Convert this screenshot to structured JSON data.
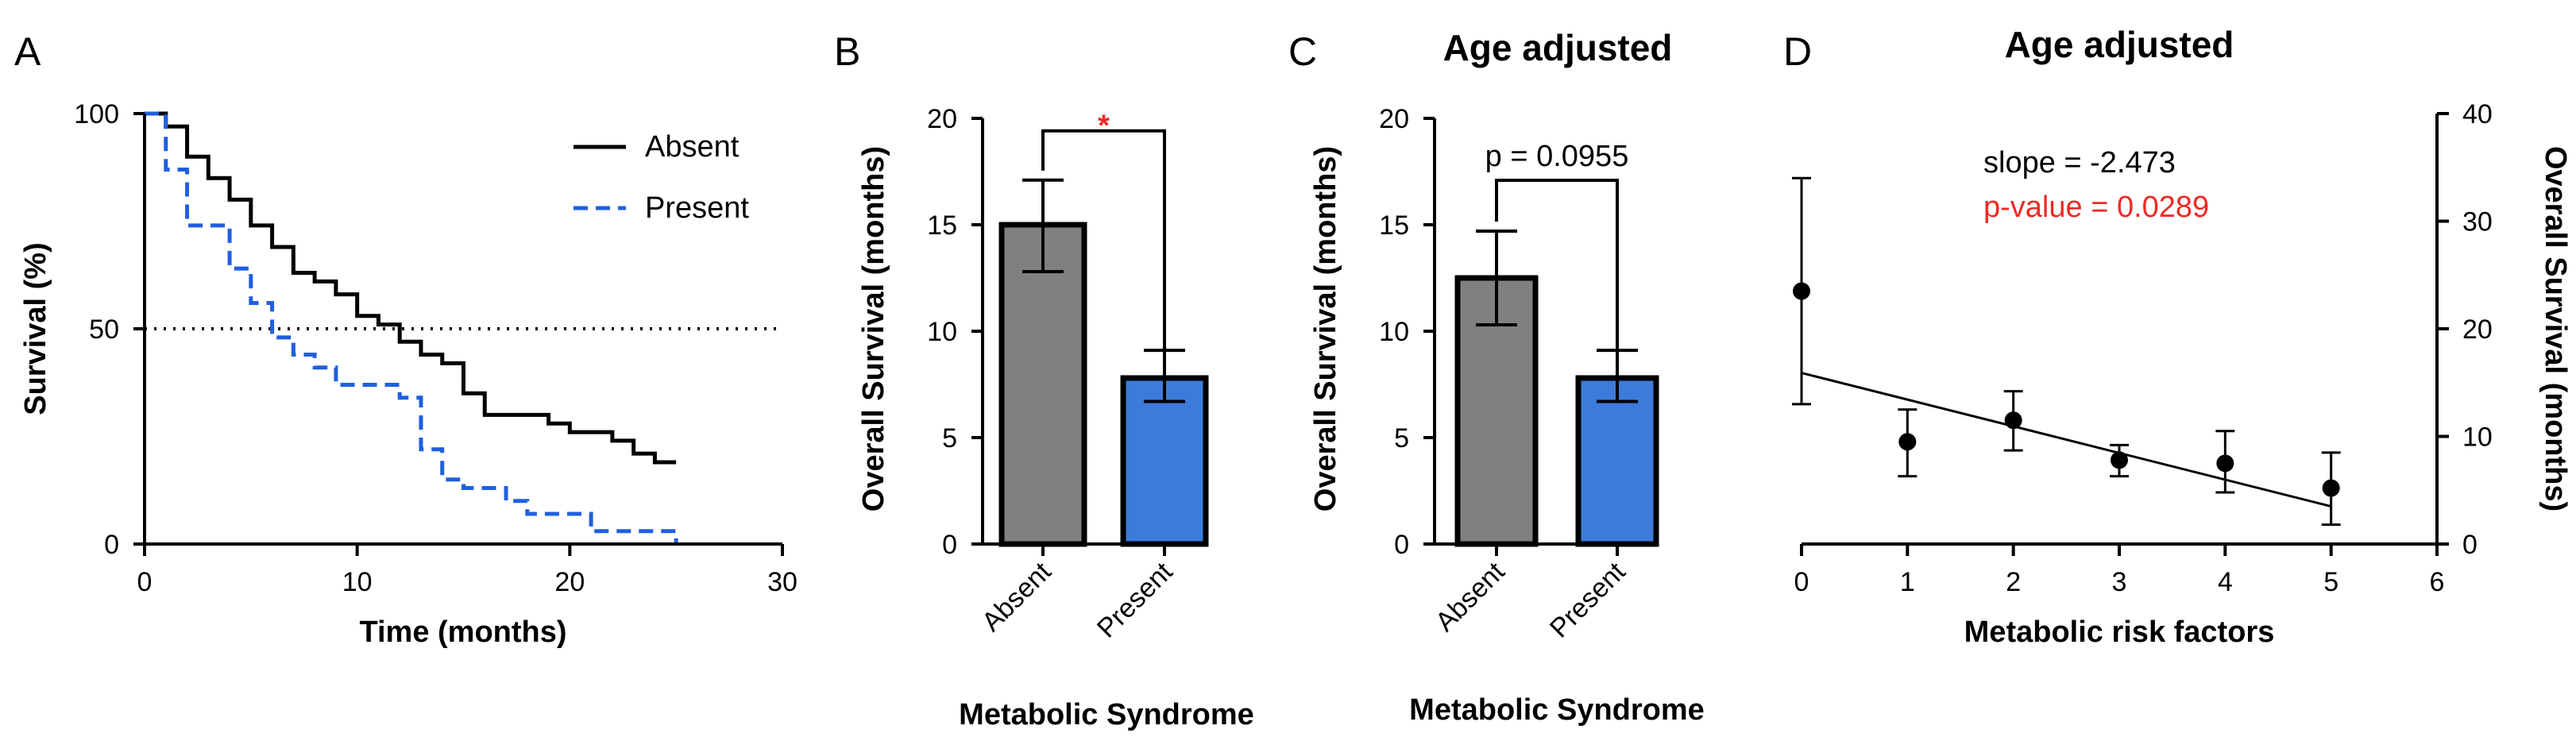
{
  "panels": {
    "a": {
      "letter": "A"
    },
    "b": {
      "letter": "B"
    },
    "c": {
      "letter": "C",
      "title": "Age adjusted"
    },
    "d": {
      "letter": "D",
      "title": "Age adjusted"
    }
  },
  "chart_data": [
    {
      "panel": "A",
      "type": "line",
      "xlabel": "Time (months)",
      "ylabel": "Survival (%)",
      "xlim": [
        0,
        30
      ],
      "ylim": [
        0,
        100
      ],
      "xticks": [
        0,
        10,
        20,
        30
      ],
      "yticks": [
        0,
        50,
        100
      ],
      "reference_line": {
        "y": 50,
        "style": "dotted"
      },
      "legend_position": "top-right",
      "series": [
        {
          "name": "Absent",
          "color": "#000000",
          "style": "solid",
          "x": [
            0,
            1,
            2,
            3,
            4,
            5,
            6,
            7,
            8,
            9,
            10,
            11,
            12,
            13,
            14,
            15,
            16,
            17,
            18,
            19,
            20,
            21,
            22,
            23,
            24,
            25
          ],
          "y": [
            100,
            97,
            90,
            85,
            80,
            74,
            69,
            63,
            61,
            58,
            53,
            51,
            47,
            44,
            42,
            35,
            30,
            30,
            30,
            28,
            26,
            26,
            24,
            21,
            19,
            19
          ]
        },
        {
          "name": "Present",
          "color": "#1f5fe0",
          "style": "dashed",
          "x": [
            0,
            1,
            2,
            3,
            4,
            5,
            6,
            7,
            8,
            9,
            10,
            11,
            12,
            13,
            14,
            15,
            16,
            17,
            18,
            19,
            20,
            21,
            22,
            23,
            24,
            25
          ],
          "y": [
            100,
            87,
            74,
            74,
            64,
            56,
            48,
            44,
            41,
            37,
            37,
            37,
            34,
            22,
            15,
            13,
            13,
            10,
            7,
            7,
            7,
            3,
            3,
            3,
            3,
            0
          ]
        }
      ]
    },
    {
      "panel": "B",
      "type": "bar",
      "categories": [
        "Absent",
        "Present"
      ],
      "values": [
        15.0,
        7.8
      ],
      "error_low": [
        12.8,
        6.7
      ],
      "error_high": [
        17.1,
        9.1
      ],
      "colors": [
        "#808080",
        "#3c7bd9"
      ],
      "xlabel": "Metabolic Syndrome",
      "ylabel": "Overall Survival (months)",
      "ylim": [
        0,
        20
      ],
      "yticks": [
        0,
        5,
        10,
        15,
        20
      ],
      "significance": {
        "label": "*",
        "color": "#ee2a24"
      }
    },
    {
      "panel": "C",
      "type": "bar",
      "title": "Age adjusted",
      "categories": [
        "Absent",
        "Present"
      ],
      "values": [
        12.5,
        7.8
      ],
      "error_low": [
        10.3,
        6.7
      ],
      "error_high": [
        14.7,
        9.1
      ],
      "colors": [
        "#808080",
        "#3c7bd9"
      ],
      "xlabel": "Metabolic Syndrome",
      "ylabel": "Overall Survival (months)",
      "ylim": [
        0,
        20
      ],
      "yticks": [
        0,
        5,
        10,
        15,
        20
      ],
      "significance": {
        "label": "p = 0.0955",
        "color": "#000000"
      }
    },
    {
      "panel": "D",
      "type": "scatter",
      "title": "Age adjusted",
      "xlabel": "Metabolic risk factors",
      "ylabel": "Overall Survival (months)",
      "xlim": [
        0,
        6
      ],
      "ylim": [
        0,
        40
      ],
      "xticks": [
        0,
        1,
        2,
        3,
        4,
        5,
        6
      ],
      "yticks": [
        0,
        10,
        20,
        30,
        40
      ],
      "y_axis_side": "right",
      "points": {
        "x": [
          0,
          1,
          2,
          3,
          4,
          5
        ],
        "y": [
          23.5,
          9.5,
          11.5,
          7.8,
          7.5,
          5.2
        ],
        "error_low": [
          13.0,
          6.3,
          8.7,
          6.3,
          4.8,
          1.8
        ],
        "error_high": [
          34.0,
          12.5,
          14.2,
          9.2,
          10.5,
          8.5
        ]
      },
      "fit_line": {
        "x": [
          0,
          5
        ],
        "y": [
          15.9,
          3.5
        ]
      },
      "annotations": [
        {
          "text": "slope = -2.473",
          "color": "#000000"
        },
        {
          "text": "p-value = 0.0289",
          "color": "#ee2a24"
        }
      ]
    }
  ]
}
